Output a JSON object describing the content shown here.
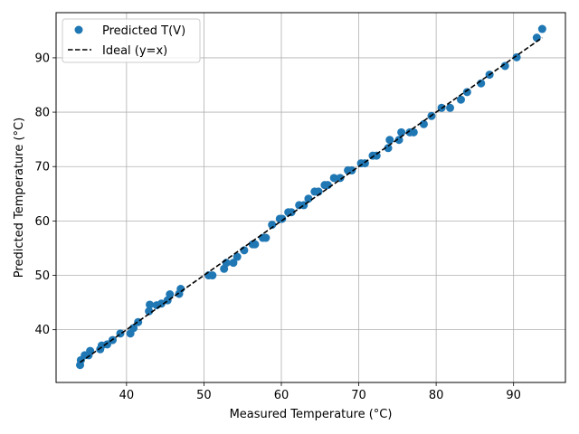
{
  "chart_data": {
    "type": "scatter",
    "title": "",
    "xlabel": "Measured Temperature (°C)",
    "ylabel": "Predicted Temperature (°C)",
    "xlim": [
      30.9,
      96.7
    ],
    "ylim": [
      30.3,
      98.3
    ],
    "xticks": [
      40,
      50,
      60,
      70,
      80,
      90
    ],
    "yticks": [
      40,
      50,
      60,
      70,
      80,
      90
    ],
    "grid": true,
    "legend_position": "upper-left",
    "series": [
      {
        "name": "Predicted T(V)",
        "kind": "scatter",
        "color": "#1f77b4",
        "points": [
          [
            34.0,
            33.5
          ],
          [
            34.1,
            34.4
          ],
          [
            34.6,
            35.3
          ],
          [
            35.1,
            35.3
          ],
          [
            35.3,
            36.1
          ],
          [
            36.6,
            36.4
          ],
          [
            36.8,
            37.1
          ],
          [
            37.5,
            37.3
          ],
          [
            38.2,
            38.1
          ],
          [
            39.2,
            39.3
          ],
          [
            40.5,
            39.3
          ],
          [
            40.9,
            40.3
          ],
          [
            41.5,
            41.4
          ],
          [
            42.9,
            43.4
          ],
          [
            43.0,
            44.6
          ],
          [
            43.9,
            44.5
          ],
          [
            44.5,
            44.8
          ],
          [
            45.3,
            45.4
          ],
          [
            45.6,
            46.5
          ],
          [
            46.8,
            46.6
          ],
          [
            47.0,
            47.5
          ],
          [
            50.6,
            50.0
          ],
          [
            51.1,
            50.0
          ],
          [
            52.6,
            51.2
          ],
          [
            52.9,
            52.3
          ],
          [
            53.8,
            52.3
          ],
          [
            54.3,
            53.4
          ],
          [
            55.2,
            54.6
          ],
          [
            56.3,
            55.7
          ],
          [
            56.6,
            55.7
          ],
          [
            57.6,
            56.9
          ],
          [
            58.0,
            56.9
          ],
          [
            58.8,
            59.3
          ],
          [
            59.8,
            60.4
          ],
          [
            60.1,
            60.4
          ],
          [
            60.9,
            61.6
          ],
          [
            61.3,
            61.6
          ],
          [
            62.3,
            62.9
          ],
          [
            62.9,
            62.9
          ],
          [
            63.5,
            64.1
          ],
          [
            64.3,
            65.4
          ],
          [
            64.8,
            65.4
          ],
          [
            65.6,
            66.6
          ],
          [
            66.0,
            66.6
          ],
          [
            66.8,
            67.9
          ],
          [
            67.6,
            67.9
          ],
          [
            68.6,
            69.3
          ],
          [
            69.1,
            69.3
          ],
          [
            70.3,
            70.6
          ],
          [
            70.8,
            70.6
          ],
          [
            71.8,
            72.0
          ],
          [
            72.3,
            72.0
          ],
          [
            73.8,
            73.4
          ],
          [
            74.0,
            74.9
          ],
          [
            75.2,
            74.9
          ],
          [
            75.5,
            76.3
          ],
          [
            76.6,
            76.3
          ],
          [
            77.1,
            76.3
          ],
          [
            78.4,
            77.8
          ],
          [
            79.4,
            79.3
          ],
          [
            80.7,
            80.8
          ],
          [
            81.8,
            80.8
          ],
          [
            83.2,
            82.3
          ],
          [
            84.0,
            83.7
          ],
          [
            85.8,
            85.3
          ],
          [
            86.9,
            86.9
          ],
          [
            88.9,
            88.5
          ],
          [
            90.4,
            90.1
          ],
          [
            93.0,
            93.7
          ],
          [
            93.7,
            95.3
          ]
        ]
      },
      {
        "name": "Ideal (y=x)",
        "kind": "line",
        "style": "dashed",
        "color": "#000000",
        "points": [
          [
            34.0,
            34.0
          ],
          [
            93.7,
            93.7
          ]
        ]
      }
    ]
  }
}
